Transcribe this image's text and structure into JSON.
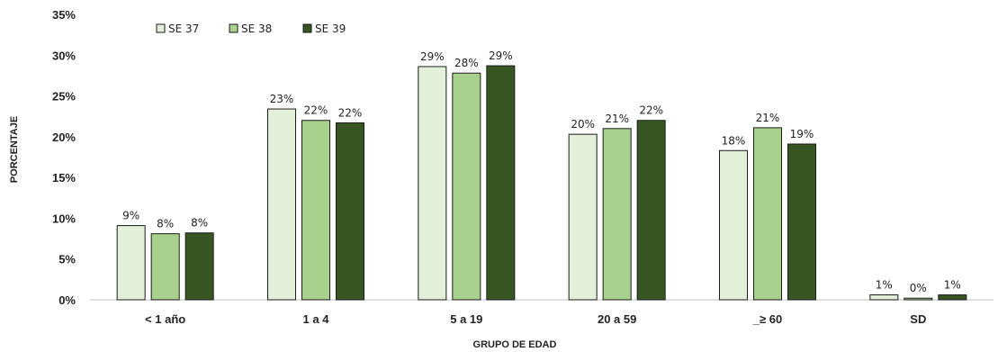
{
  "chart_data": {
    "type": "bar",
    "categories": [
      "< 1 año",
      "1 a 4",
      "5 a 19",
      "20 a 59",
      "_≥ 60",
      "SD"
    ],
    "series": [
      {
        "name": "SE 37",
        "color": "#e3efd9",
        "values": [
          9.1,
          23.4,
          28.6,
          20.3,
          18.3,
          0.6
        ],
        "labels": [
          "9%",
          "23%",
          "29%",
          "20%",
          "18%",
          "1%"
        ]
      },
      {
        "name": "SE 38",
        "color": "#a9d18e",
        "values": [
          8.1,
          22.0,
          27.8,
          21.0,
          21.1,
          0.2
        ],
        "labels": [
          "8%",
          "22%",
          "28%",
          "21%",
          "21%",
          "0%"
        ]
      },
      {
        "name": "SE 39",
        "color": "#375623",
        "values": [
          8.2,
          21.7,
          28.7,
          22.0,
          19.1,
          0.6
        ],
        "labels": [
          "8%",
          "22%",
          "29%",
          "22%",
          "19%",
          "1%"
        ]
      }
    ],
    "ylim": [
      0,
      35
    ],
    "yticks": [
      0,
      5,
      10,
      15,
      20,
      25,
      30,
      35
    ],
    "ytick_labels": [
      "0%",
      "5%",
      "10%",
      "15%",
      "20%",
      "25%",
      "30%",
      "35%"
    ],
    "xlabel": "GRUPO DE EDAD",
    "ylabel": "PORCENTAJE",
    "legend_position": "top-left",
    "grid": false
  }
}
